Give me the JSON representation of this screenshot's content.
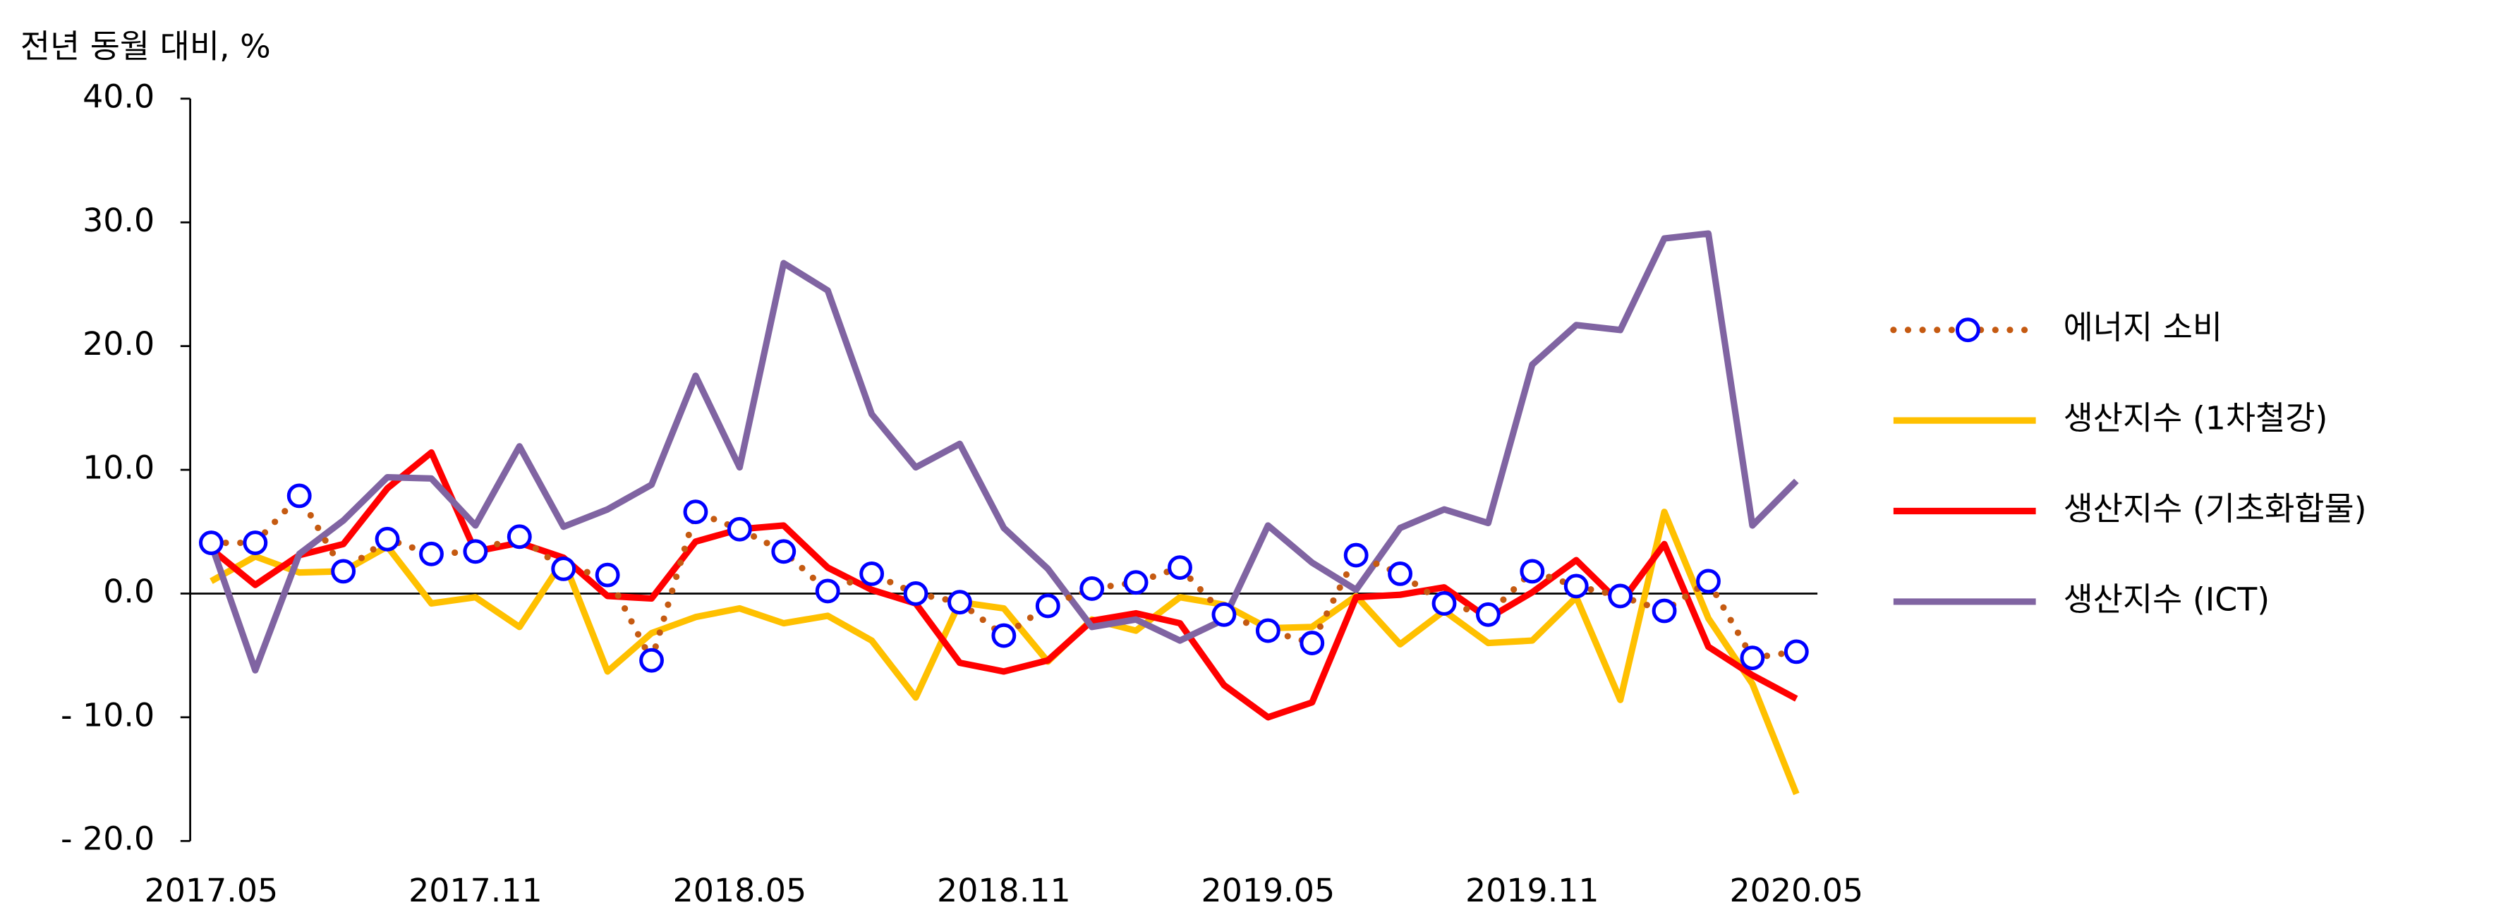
{
  "chart_data": {
    "type": "line",
    "ylabel": "전년 동월 대비, %",
    "categories": [
      "2017.05",
      null,
      null,
      null,
      null,
      null,
      "2017.11",
      null,
      null,
      null,
      null,
      null,
      "2018.05",
      null,
      null,
      null,
      null,
      null,
      "2018.11",
      null,
      null,
      null,
      null,
      null,
      "2019.05",
      null,
      null,
      null,
      null,
      null,
      "2019.11",
      null,
      null,
      null,
      null,
      null,
      "2020.05"
    ],
    "ylim": [
      -20,
      40
    ],
    "yticks": [
      {
        "value": -20,
        "label": "- 20.0"
      },
      {
        "value": -10,
        "label": "- 10.0"
      },
      {
        "value": 0,
        "label": "0.0"
      },
      {
        "value": 10,
        "label": "10.0"
      },
      {
        "value": 20,
        "label": "20.0"
      },
      {
        "value": 30,
        "label": "30.0"
      },
      {
        "value": 40,
        "label": "40.0"
      }
    ],
    "legend": "right",
    "series": [
      {
        "name": "에너지 소비",
        "color": "#c55a11",
        "marker_color": "#0000ff",
        "style": "dotted-marker",
        "values": [
          4.1,
          4.1,
          7.9,
          1.8,
          4.4,
          3.2,
          3.4,
          4.6,
          2.0,
          1.5,
          -5.4,
          6.6,
          5.2,
          3.4,
          0.2,
          1.6,
          0.0,
          -0.7,
          -3.4,
          -1.0,
          0.4,
          0.9,
          2.1,
          -1.7,
          -3.0,
          -4.0,
          3.1,
          1.6,
          -0.8,
          -1.7,
          1.8,
          0.6,
          -0.2,
          -1.4,
          1.0,
          -5.2,
          -4.7
        ]
      },
      {
        "name": "생산지수 (1차철강)",
        "color": "#ffc000",
        "style": "line",
        "values": [
          1.0,
          3.0,
          1.7,
          1.8,
          3.8,
          -0.8,
          -0.3,
          -2.7,
          2.7,
          -6.3,
          -3.2,
          -1.9,
          -1.2,
          -2.4,
          -1.8,
          -3.8,
          -8.4,
          -0.7,
          -1.2,
          -5.5,
          -2.1,
          -3.0,
          -0.3,
          -0.9,
          -2.8,
          -2.7,
          -0.2,
          -4.1,
          -1.4,
          -4.0,
          -3.8,
          -0.3,
          -8.6,
          6.6,
          -2.0,
          -7.3,
          -16.2
        ]
      },
      {
        "name": "생산지수 (기초화합물)",
        "color": "#ff0000",
        "style": "line",
        "values": [
          3.6,
          0.7,
          3.1,
          4.0,
          8.5,
          11.4,
          3.4,
          4.1,
          2.9,
          -0.2,
          -0.4,
          4.2,
          5.2,
          5.5,
          2.1,
          0.3,
          -0.8,
          -5.6,
          -6.3,
          -5.4,
          -2.2,
          -1.6,
          -2.4,
          -7.4,
          -10.0,
          -8.8,
          -0.3,
          -0.1,
          0.5,
          -2.0,
          0.1,
          2.7,
          -0.8,
          4.0,
          -4.3,
          -6.6,
          -8.5
        ]
      },
      {
        "name": "생산지수 (ICT)",
        "color": "#8064a2",
        "style": "line",
        "values": [
          4.0,
          -6.2,
          3.2,
          5.9,
          9.4,
          9.3,
          5.5,
          11.9,
          5.4,
          6.8,
          8.8,
          17.6,
          10.2,
          26.7,
          24.5,
          14.5,
          10.2,
          12.1,
          5.3,
          2.0,
          -2.7,
          -2.1,
          -3.8,
          -2.1,
          5.5,
          2.5,
          0.3,
          5.3,
          6.8,
          5.7,
          18.5,
          21.7,
          21.3,
          28.7,
          29.1,
          5.5,
          9.1
        ]
      }
    ]
  }
}
